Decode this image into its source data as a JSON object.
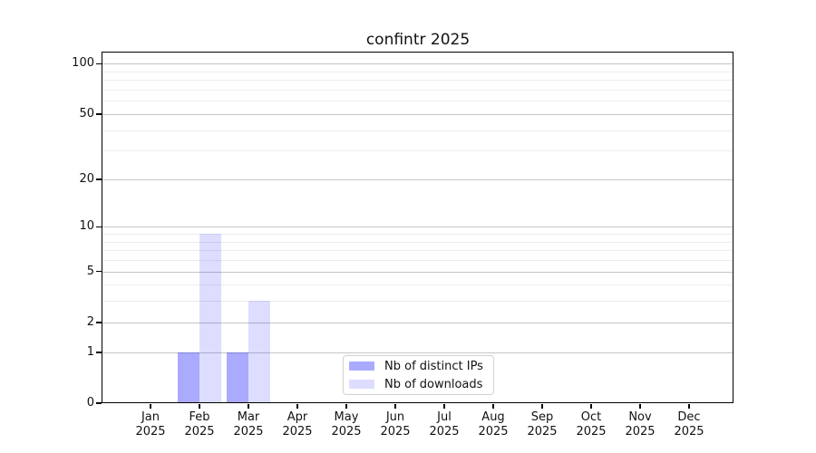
{
  "title": "confintr 2025",
  "chart_data": {
    "type": "bar",
    "title": "confintr 2025",
    "categories": [
      "Jan",
      "Feb",
      "Mar",
      "Apr",
      "May",
      "Jun",
      "Jul",
      "Aug",
      "Sep",
      "Oct",
      "Nov",
      "Dec"
    ],
    "year": "2025",
    "series": [
      {
        "name": "Nb of distinct IPs",
        "color": "rgba(0,0,255,0.335)",
        "color_over_white": "#aaaaf7",
        "values": [
          0,
          1,
          1,
          0,
          0,
          0,
          0,
          0,
          0,
          0,
          0,
          0
        ]
      },
      {
        "name": "Nb of downloads",
        "color": "rgba(0,0,255,0.135)",
        "color_over_white": "#dcdcf7",
        "values": [
          0,
          9,
          3,
          0,
          0,
          0,
          0,
          0,
          0,
          0,
          0,
          0
        ]
      }
    ],
    "y_scale": "log1p",
    "y_axis_ticks": [
      0,
      1,
      2,
      5,
      10,
      20,
      50,
      100
    ],
    "y_minor_gridlines": [
      3,
      4,
      6,
      7,
      8,
      9,
      30,
      40,
      60,
      70,
      80,
      90
    ],
    "ylim": [
      0,
      116.5
    ],
    "xlabel": "",
    "ylabel": "",
    "grid": true,
    "legend_position": "bottom-center",
    "legend": [
      "Nb of distinct IPs",
      "Nb of downloads"
    ]
  },
  "colors": {
    "background": "#ffffff",
    "axis": "#000000",
    "text": "#111111",
    "grid_major": "#c6c6c6",
    "grid_minor": "#ececec",
    "legend_border": "#d2d2d2"
  }
}
